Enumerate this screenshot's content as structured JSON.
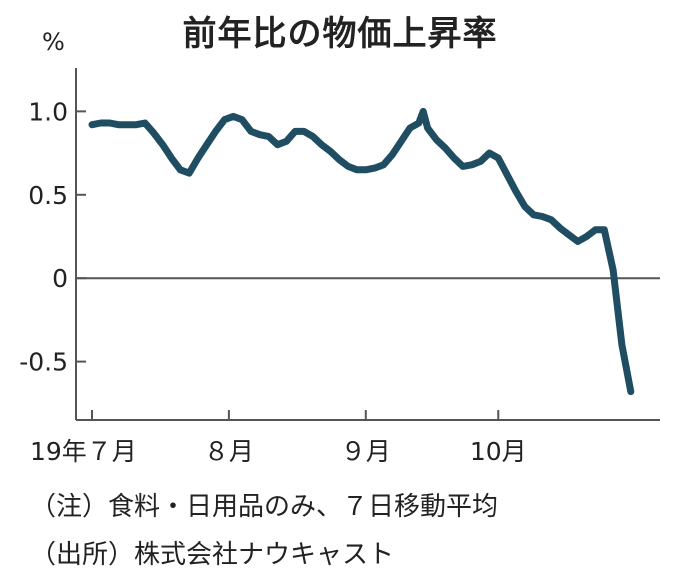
{
  "title": "前年比の物価上昇率",
  "unit_label": "%",
  "notes": {
    "note": "（注）食料・日用品のみ、７日移動平均",
    "source": "（出所）株式会社ナウキャスト"
  },
  "colors": {
    "line": "#1f4e63",
    "axis": "#555555",
    "zero_line": "#555555",
    "text": "#222222"
  },
  "chart_data": {
    "type": "line",
    "title": "前年比の物価上昇率",
    "ylabel": "%",
    "xlabel": "",
    "ylim": [
      -0.85,
      1.2
    ],
    "yticks": [
      {
        "value": 1.0,
        "label": "1.0"
      },
      {
        "value": 0.5,
        "label": "0.5"
      },
      {
        "value": 0,
        "label": "0"
      },
      {
        "value": -0.5,
        "label": "-0.5"
      }
    ],
    "xlim": [
      0,
      125
    ],
    "xticks": [
      {
        "pos": 0,
        "label": "19年７月"
      },
      {
        "pos": 31,
        "label": "８月"
      },
      {
        "pos": 62,
        "label": "９月"
      },
      {
        "pos": 92,
        "label": "10月"
      }
    ],
    "grid": false,
    "series": [
      {
        "points": [
          [
            0,
            0.92
          ],
          [
            2,
            0.93
          ],
          [
            4,
            0.93
          ],
          [
            6,
            0.92
          ],
          [
            8,
            0.92
          ],
          [
            10,
            0.92
          ],
          [
            12,
            0.93
          ],
          [
            14,
            0.87
          ],
          [
            16,
            0.8
          ],
          [
            18,
            0.72
          ],
          [
            20,
            0.65
          ],
          [
            22,
            0.63
          ],
          [
            24,
            0.72
          ],
          [
            26,
            0.8
          ],
          [
            28,
            0.88
          ],
          [
            30,
            0.95
          ],
          [
            32,
            0.97
          ],
          [
            34,
            0.95
          ],
          [
            36,
            0.88
          ],
          [
            38,
            0.86
          ],
          [
            40,
            0.85
          ],
          [
            42,
            0.8
          ],
          [
            44,
            0.82
          ],
          [
            46,
            0.88
          ],
          [
            48,
            0.88
          ],
          [
            50,
            0.85
          ],
          [
            52,
            0.8
          ],
          [
            54,
            0.76
          ],
          [
            56,
            0.71
          ],
          [
            58,
            0.67
          ],
          [
            60,
            0.65
          ],
          [
            62,
            0.65
          ],
          [
            64,
            0.66
          ],
          [
            66,
            0.68
          ],
          [
            68,
            0.74
          ],
          [
            70,
            0.82
          ],
          [
            72,
            0.9
          ],
          [
            74,
            0.93
          ],
          [
            75,
            1.0
          ],
          [
            76,
            0.9
          ],
          [
            78,
            0.83
          ],
          [
            80,
            0.78
          ],
          [
            82,
            0.72
          ],
          [
            84,
            0.67
          ],
          [
            86,
            0.68
          ],
          [
            88,
            0.7
          ],
          [
            90,
            0.75
          ],
          [
            92,
            0.72
          ],
          [
            94,
            0.62
          ],
          [
            96,
            0.52
          ],
          [
            98,
            0.43
          ],
          [
            100,
            0.38
          ],
          [
            102,
            0.37
          ],
          [
            104,
            0.35
          ],
          [
            106,
            0.3
          ],
          [
            108,
            0.26
          ],
          [
            110,
            0.22
          ],
          [
            112,
            0.25
          ],
          [
            114,
            0.29
          ],
          [
            116,
            0.29
          ],
          [
            118,
            0.05
          ],
          [
            120,
            -0.4
          ],
          [
            122,
            -0.68
          ]
        ]
      }
    ]
  }
}
